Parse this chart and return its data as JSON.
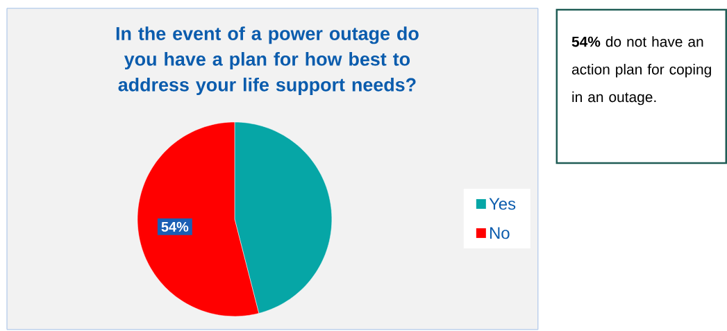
{
  "chart_data": {
    "type": "pie",
    "title": "In the event of a power outage do you have a plan for how best to address your life support needs?",
    "categories": [
      "Yes",
      "No"
    ],
    "values": [
      46,
      54
    ],
    "colors": [
      "#06a6a6",
      "#ff0000"
    ],
    "value_labels": [
      null,
      "54%"
    ],
    "legend": "right",
    "annotations": [
      "**54%** do not have an action plan for coping in an outage."
    ]
  }
}
